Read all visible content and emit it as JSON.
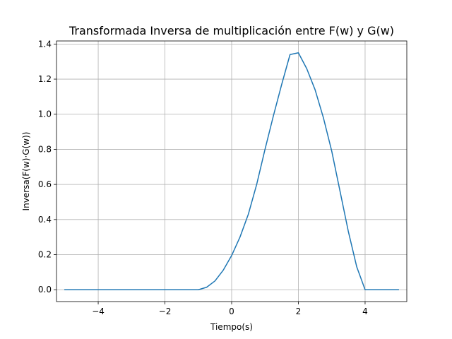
{
  "chart_data": {
    "type": "line",
    "title": "Transformada Inversa de multiplicación entre F(w) y G(w)",
    "xlabel": "Tiempo(s)",
    "ylabel": "Inversa(F(w)·G(w))",
    "xlim": [
      -5.25,
      5.25
    ],
    "ylim": [
      -0.0675,
      1.4175
    ],
    "grid": true,
    "x_ticks": [
      -4,
      -2,
      0,
      2,
      4
    ],
    "x_tick_labels": [
      "−4",
      "−2",
      "0",
      "2",
      "4"
    ],
    "y_ticks": [
      0.0,
      0.2,
      0.4,
      0.6,
      0.8,
      1.0,
      1.2,
      1.4
    ],
    "y_tick_labels": [
      "0.0",
      "0.2",
      "0.4",
      "0.6",
      "0.8",
      "1.0",
      "1.2",
      "1.4"
    ],
    "series": [
      {
        "color": "#1f77b4",
        "x": [
          -5.0,
          -4.0,
          -3.0,
          -2.0,
          -1.0,
          -0.75,
          -0.5,
          -0.25,
          0.0,
          0.25,
          0.5,
          0.75,
          1.0,
          1.25,
          1.5,
          1.75,
          2.0,
          2.25,
          2.5,
          2.75,
          3.0,
          3.25,
          3.5,
          3.75,
          4.0,
          4.5,
          5.0
        ],
        "y": [
          0.0,
          0.0,
          0.0,
          0.0,
          0.0,
          0.014,
          0.05,
          0.112,
          0.195,
          0.3,
          0.43,
          0.6,
          0.8,
          0.99,
          1.17,
          1.34,
          1.35,
          1.26,
          1.14,
          0.98,
          0.79,
          0.56,
          0.33,
          0.13,
          0.0,
          0.0,
          0.0
        ]
      }
    ]
  }
}
